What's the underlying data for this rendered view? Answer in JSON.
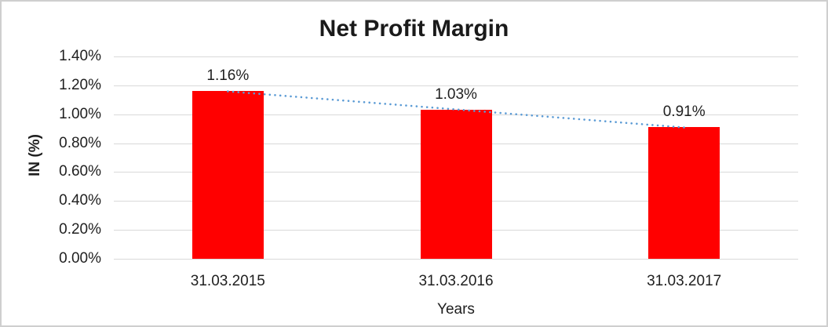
{
  "chart_data": {
    "type": "bar",
    "title": "Net Profit Margin",
    "xlabel": "Years",
    "ylabel": "IN (%)",
    "categories": [
      "31.03.2015",
      "31.03.2016",
      "31.03.2017"
    ],
    "values": [
      1.16,
      1.03,
      0.91
    ],
    "data_labels": [
      "1.16%",
      "1.03%",
      "0.91%"
    ],
    "value_unit": "%",
    "ylim": [
      0,
      1.4
    ],
    "yticks": [
      {
        "value": 0.0,
        "label": "0.00%"
      },
      {
        "value": 0.2,
        "label": "0.20%"
      },
      {
        "value": 0.4,
        "label": "0.40%"
      },
      {
        "value": 0.6,
        "label": "0.60%"
      },
      {
        "value": 0.8,
        "label": "0.80%"
      },
      {
        "value": 1.0,
        "label": "1.00%"
      },
      {
        "value": 1.2,
        "label": "1.20%"
      },
      {
        "value": 1.4,
        "label": "1.40%"
      }
    ],
    "grid": true,
    "legend": "none",
    "bar_color": "#ff0000",
    "gridline_color": "#d9d9d9",
    "trendline": {
      "type": "linear",
      "style": "dotted",
      "color": "#5b9bd5"
    }
  }
}
